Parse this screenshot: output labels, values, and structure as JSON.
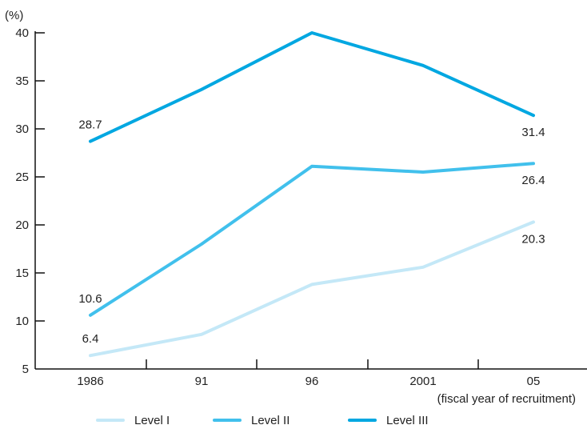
{
  "chart_data": {
    "type": "line",
    "ylabel": "(%)",
    "xlabel": "(fiscal year of recruitment)",
    "categories": [
      "1986",
      "91",
      "96",
      "2001",
      "05"
    ],
    "ylim": [
      5,
      40
    ],
    "yticks": [
      "5",
      "10",
      "15",
      "20",
      "25",
      "30",
      "35",
      "40"
    ],
    "series": [
      {
        "name": "Level I",
        "color": "#c4e8f7",
        "values": [
          6.4,
          8.6,
          13.8,
          15.6,
          20.3
        ]
      },
      {
        "name": "Level II",
        "color": "#41c0ec",
        "values": [
          10.6,
          18.0,
          26.1,
          25.5,
          26.4
        ]
      },
      {
        "name": "Level III",
        "color": "#00a7e1",
        "values": [
          28.7,
          34.1,
          40.0,
          36.6,
          31.4
        ]
      }
    ],
    "data_labels": [
      {
        "series": 0,
        "index": 0,
        "text": "6.4"
      },
      {
        "series": 0,
        "index": 4,
        "text": "20.3"
      },
      {
        "series": 1,
        "index": 0,
        "text": "10.6"
      },
      {
        "series": 1,
        "index": 4,
        "text": "26.4"
      },
      {
        "series": 2,
        "index": 0,
        "text": "28.7"
      },
      {
        "series": 2,
        "index": 4,
        "text": "31.4"
      }
    ],
    "legend_position": "bottom",
    "grid": false
  }
}
